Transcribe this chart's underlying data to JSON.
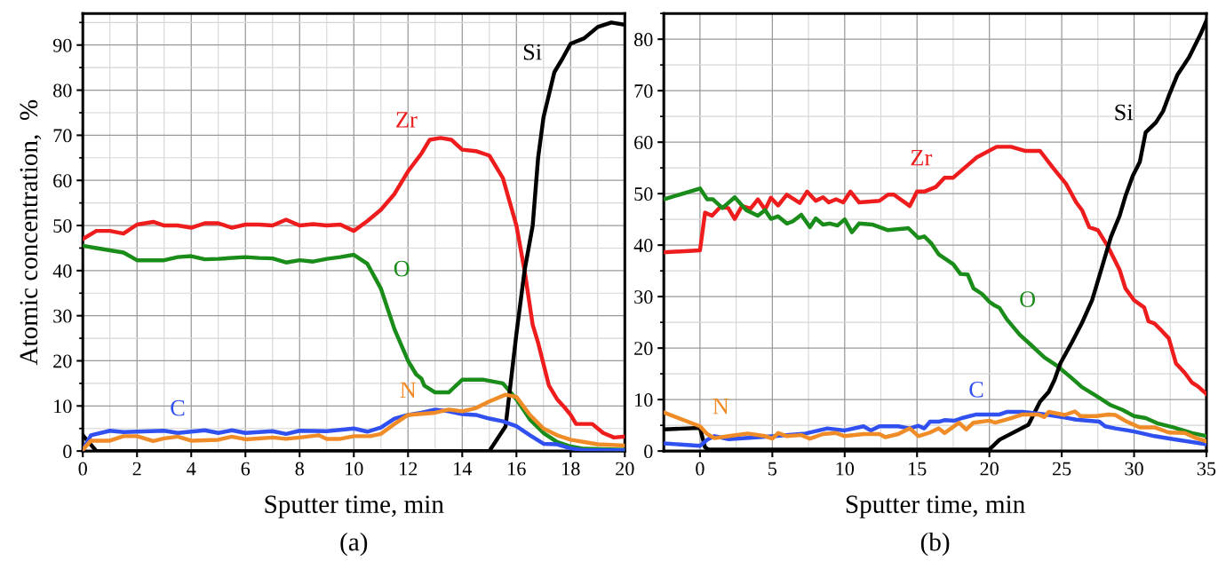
{
  "chart_data": [
    {
      "type": "line",
      "xlabel": "Sputter time, min",
      "ylabel": "Atomic concentration,  %",
      "xlim": [
        0,
        20
      ],
      "xticks": [
        0,
        2,
        4,
        6,
        8,
        10,
        12,
        14,
        16,
        18,
        20
      ],
      "ylim": [
        0,
        97
      ],
      "yticks": [
        0,
        10,
        20,
        30,
        40,
        50,
        60,
        70,
        80,
        90
      ],
      "grid": true,
      "legend": false,
      "marker": "none",
      "line_style": "solid",
      "series": [
        {
          "color": "#ee1c1c",
          "x": [
            0,
            0.5,
            1,
            1.5,
            2,
            2.6,
            3,
            3.5,
            4,
            4.5,
            5,
            5.5,
            6,
            6.5,
            7,
            7.5,
            8,
            8.5,
            9,
            9.5,
            10,
            10.5,
            11,
            11.5,
            12,
            12.5,
            12.8,
            13.2,
            13.6,
            14,
            14.5,
            15,
            15.5,
            16,
            16.3,
            16.6,
            16.8,
            17.2,
            17.5,
            17.8,
            18,
            18.2,
            18.8,
            19.2,
            19.6,
            20
          ],
          "values": [
            47,
            48.8,
            48.8,
            48.2,
            50.2,
            50.8,
            50,
            50,
            49.5,
            50.5,
            50.5,
            49.5,
            50.2,
            50.2,
            50,
            51.3,
            50,
            50.3,
            50,
            50.2,
            48.8,
            51,
            53.5,
            57,
            62,
            66,
            69,
            69.4,
            69,
            66.8,
            66.5,
            65.5,
            60.5,
            50,
            40,
            28,
            24,
            14.5,
            11.5,
            9.5,
            8,
            6,
            6,
            4,
            3,
            3.2
          ]
        },
        {
          "color": "#1a8c1a",
          "x": [
            0,
            0.5,
            1,
            1.5,
            2,
            3,
            3.5,
            4,
            4.5,
            5,
            6,
            6.5,
            7,
            7.5,
            8,
            8.5,
            9,
            9.5,
            10,
            10.5,
            11,
            11.5,
            12,
            12.3,
            12.5,
            12.6,
            13,
            13.5,
            14,
            14.8,
            15.5,
            16,
            16.5,
            17,
            17.5,
            18,
            18.5,
            20
          ],
          "values": [
            45.5,
            45,
            44.5,
            44,
            42.3,
            42.3,
            43,
            43.2,
            42.5,
            42.6,
            43,
            42.8,
            42.7,
            41.8,
            42.3,
            42,
            42.6,
            43,
            43.5,
            41.5,
            36,
            27,
            20,
            17,
            16,
            14.5,
            13,
            13,
            15.8,
            15.8,
            15,
            11.5,
            7,
            4,
            2,
            1,
            0.5,
            0.3
          ]
        },
        {
          "color": "#000000",
          "x": [
            0,
            0.5,
            15,
            15.6,
            16,
            16.3,
            16.6,
            16.8,
            17,
            17.4,
            17.7,
            18,
            18.5,
            19,
            19.5,
            20
          ],
          "values": [
            3.5,
            0,
            0,
            5.5,
            26,
            40,
            50,
            65,
            74,
            84,
            87,
            90.3,
            91.5,
            94,
            95,
            94.5
          ]
        },
        {
          "color": "#3050f0",
          "x": [
            0,
            0.3,
            1,
            1.5,
            3,
            3.5,
            4.5,
            5,
            5.5,
            6,
            7,
            7.5,
            8,
            9,
            10,
            10.5,
            11,
            11.5,
            12,
            12.5,
            13,
            13.5,
            14,
            14.5,
            15,
            15.5,
            16,
            16.5,
            17,
            17.5,
            18,
            18.5,
            20
          ],
          "values": [
            0.3,
            3.5,
            4.5,
            4.2,
            4.5,
            4,
            4.6,
            4,
            4.6,
            4,
            4.4,
            3.8,
            4.5,
            4.4,
            5,
            4.3,
            5.2,
            7.2,
            8,
            8.5,
            9.2,
            8.8,
            8.2,
            8,
            7.2,
            6.6,
            5.5,
            3.5,
            1.6,
            1.5,
            0.6,
            0.2,
            0.2
          ]
        },
        {
          "color": "#f08c28",
          "x": [
            0,
            0.3,
            1,
            1.5,
            2,
            2.6,
            3,
            3.5,
            4,
            5,
            5.5,
            6,
            7,
            7.5,
            8,
            8.7,
            9,
            9.5,
            10,
            10.6,
            11,
            11.5,
            12,
            13,
            13.5,
            14,
            14.5,
            15,
            15.6,
            16,
            16.5,
            17,
            17.5,
            18,
            18.5,
            19,
            20
          ],
          "values": [
            0.3,
            2.3,
            2.3,
            3.3,
            3.3,
            2.2,
            2.8,
            3.2,
            2.3,
            2.5,
            3.2,
            2.6,
            3,
            2.7,
            3,
            3.5,
            2.7,
            2.7,
            3.3,
            3.3,
            3.8,
            6,
            8,
            8.5,
            9.2,
            8.8,
            9.5,
            11,
            12.5,
            12,
            8,
            5,
            3.5,
            2.5,
            2,
            1.5,
            1.2
          ]
        }
      ],
      "annotations": [
        {
          "text": "Zr",
          "x": 12.8,
          "y": 69
        },
        {
          "text": "O",
          "x": 11,
          "y": 36
        },
        {
          "text": "Si",
          "x": 17.4,
          "y": 84
        },
        {
          "text": "C",
          "x": 3.5,
          "y": 4
        },
        {
          "text": "N",
          "x": 12,
          "y": 8
        },
        "(a)"
      ]
    },
    {
      "type": "line",
      "xlabel": "Sputter time, min",
      "xlim": [
        -2.5,
        35
      ],
      "xticks": [
        0,
        5,
        10,
        15,
        20,
        25,
        30,
        35
      ],
      "ylim": [
        0,
        85
      ],
      "yticks": [
        0,
        10,
        20,
        30,
        40,
        50,
        60,
        70,
        80
      ],
      "grid": true,
      "legend": false,
      "marker": "none",
      "line_style": "solid",
      "series": [
        {
          "color": "#ee1c1c",
          "x": [
            -2.5,
            0,
            0.35,
            0.83,
            1.4,
            1.95,
            2.4,
            2.9,
            3.5,
            4,
            4.5,
            4.9,
            5.4,
            6,
            6.9,
            7.4,
            8,
            8.5,
            8.9,
            9.4,
            9.9,
            10.4,
            11,
            12.4,
            13,
            13.4,
            14.5,
            15,
            15.5,
            16.3,
            16.9,
            17.5,
            19.1,
            20.5,
            21.5,
            22.5,
            23.5,
            24.4,
            25.3,
            26,
            26.4,
            26.9,
            27.5,
            28.2,
            29,
            29.4,
            30,
            30.7,
            31,
            31.4,
            31.9,
            32.4,
            32.9,
            33.5,
            34,
            34.4,
            35
          ],
          "values": [
            38.6,
            39,
            46.3,
            45.7,
            47.4,
            47.2,
            45.1,
            47.6,
            47.1,
            48.9,
            46.9,
            49.2,
            47.7,
            49.8,
            48.2,
            50.4,
            48.6,
            49.3,
            48.3,
            48.9,
            48.3,
            50.4,
            48.3,
            48.6,
            49.8,
            49.8,
            47.6,
            50.4,
            50.4,
            51.3,
            53.1,
            53.1,
            57,
            59.1,
            59.1,
            58.3,
            58.3,
            55,
            51.9,
            48.3,
            46.8,
            43.5,
            42.9,
            39.7,
            35.2,
            31.6,
            29.3,
            27.9,
            25.2,
            24.8,
            23.4,
            21.9,
            17,
            15.2,
            13.3,
            12.6,
            11.1
          ]
        },
        {
          "color": "#1a8c1a",
          "x": [
            -2.5,
            0,
            0.5,
            0.9,
            1.55,
            2.4,
            3.2,
            4,
            4.5,
            4.9,
            5.4,
            6,
            6.4,
            7,
            7.6,
            8,
            8.5,
            9,
            9.5,
            10,
            10.5,
            11,
            11.9,
            13,
            14.4,
            15.1,
            15.5,
            16,
            16.5,
            17.5,
            18,
            18.5,
            18.9,
            19.5,
            20,
            20.3,
            20.7,
            21.2,
            22.1,
            22.8,
            23.8,
            24.7,
            25.6,
            26.4,
            27.4,
            28.4,
            29.2,
            30,
            30.8,
            31.6,
            32.7,
            34,
            35
          ],
          "values": [
            48.9,
            51,
            48.9,
            48.9,
            47.2,
            49.3,
            46.8,
            45.7,
            46.8,
            45.1,
            45.6,
            44.2,
            44.6,
            45.9,
            43.5,
            45.2,
            44,
            44.2,
            43.8,
            45,
            42.5,
            44.2,
            44,
            42.9,
            43.3,
            41.4,
            41.7,
            40.3,
            38.2,
            36.3,
            34.4,
            34.3,
            31.6,
            30.5,
            29,
            28.4,
            27.8,
            25.6,
            22.6,
            20.8,
            18.2,
            16.5,
            14.4,
            12.4,
            10.7,
            8.9,
            8,
            6.8,
            6.4,
            5.4,
            4.6,
            3.5,
            2.9
          ]
        },
        {
          "color": "#000000",
          "x": [
            -2.5,
            0,
            0.35,
            0.6,
            20,
            20.7,
            22.7,
            23.5,
            24.1,
            24.5,
            24.9,
            25.7,
            26.4,
            27.1,
            27.6,
            28.2,
            28.4,
            29,
            29.4,
            29.9,
            30.4,
            30.8,
            31.5,
            32,
            32.4,
            33,
            33.8,
            34.6,
            35
          ],
          "values": [
            4.2,
            4.5,
            0.7,
            0.3,
            0.3,
            2.2,
            5.1,
            9.6,
            11.5,
            13.8,
            17,
            21.1,
            24.9,
            29.3,
            34,
            39.7,
            41.6,
            45.7,
            49.5,
            53.4,
            56.2,
            61.9,
            63.8,
            66,
            69,
            73.1,
            76.5,
            81,
            83.6
          ]
        },
        {
          "color": "#3050f0",
          "x": [
            -2.5,
            0,
            0.5,
            1,
            2,
            5.2,
            7.3,
            8.8,
            10,
            11.3,
            11.8,
            12.4,
            13.7,
            14.5,
            15.1,
            15.5,
            15.9,
            16.5,
            16.9,
            17.6,
            18.1,
            19.1,
            20.7,
            21.2,
            22.3,
            23.9,
            25.2,
            26,
            27.6,
            28,
            28.7,
            30,
            31.4,
            32.7,
            35
          ],
          "values": [
            1.5,
            1,
            2.2,
            2.9,
            2.3,
            2.9,
            3.4,
            4.4,
            4,
            4.8,
            4,
            4.8,
            4.8,
            4.4,
            4.9,
            4.4,
            5.7,
            5.7,
            6,
            5.9,
            6.4,
            7.1,
            7.1,
            7.6,
            7.6,
            7.1,
            6.5,
            6.1,
            5.7,
            4.8,
            4.4,
            3.8,
            2.9,
            2.3,
            1.3
          ]
        },
        {
          "color": "#f08c28",
          "x": [
            -2.5,
            0,
            0.5,
            1,
            2,
            3.3,
            4.5,
            5,
            5.4,
            6,
            7,
            7.6,
            8.5,
            9.4,
            10,
            11.3,
            12.4,
            12.8,
            13.7,
            14.5,
            15.1,
            15.9,
            16.5,
            16.9,
            17.9,
            18.4,
            18.9,
            20,
            20.4,
            21.5,
            22.3,
            23.4,
            23.8,
            24.1,
            25.2,
            25.9,
            26.3,
            27.4,
            28.2,
            28.7,
            29.5,
            30.4,
            31.4,
            32.4,
            33.5,
            34.3,
            35
          ],
          "values": [
            7.5,
            4.8,
            3.3,
            2.5,
            2.9,
            3.4,
            2.9,
            2.4,
            3.5,
            2.9,
            3.1,
            2.4,
            3.3,
            3.5,
            2.9,
            3.3,
            3.3,
            2.7,
            3.3,
            4.4,
            2.9,
            3.6,
            4.4,
            3.5,
            5.5,
            4.2,
            5.5,
            5.9,
            5.5,
            6.4,
            7.1,
            7.1,
            6.6,
            7.6,
            7,
            7.7,
            6.8,
            6.8,
            7.1,
            7,
            5.7,
            4.6,
            4.6,
            3.6,
            3.5,
            2.5,
            1.9
          ]
        }
      ],
      "annotations": [
        {
          "text": "Zr",
          "x": 16.9,
          "y": 53.1
        },
        {
          "text": "O",
          "x": 21.2,
          "y": 25.6
        },
        {
          "text": "Si",
          "x": 30.8,
          "y": 61.9
        },
        {
          "text": "C",
          "x": 19.1,
          "y": 7.1
        },
        {
          "text": "N",
          "x": 0,
          "y": 4.8
        },
        "(b)"
      ]
    }
  ]
}
